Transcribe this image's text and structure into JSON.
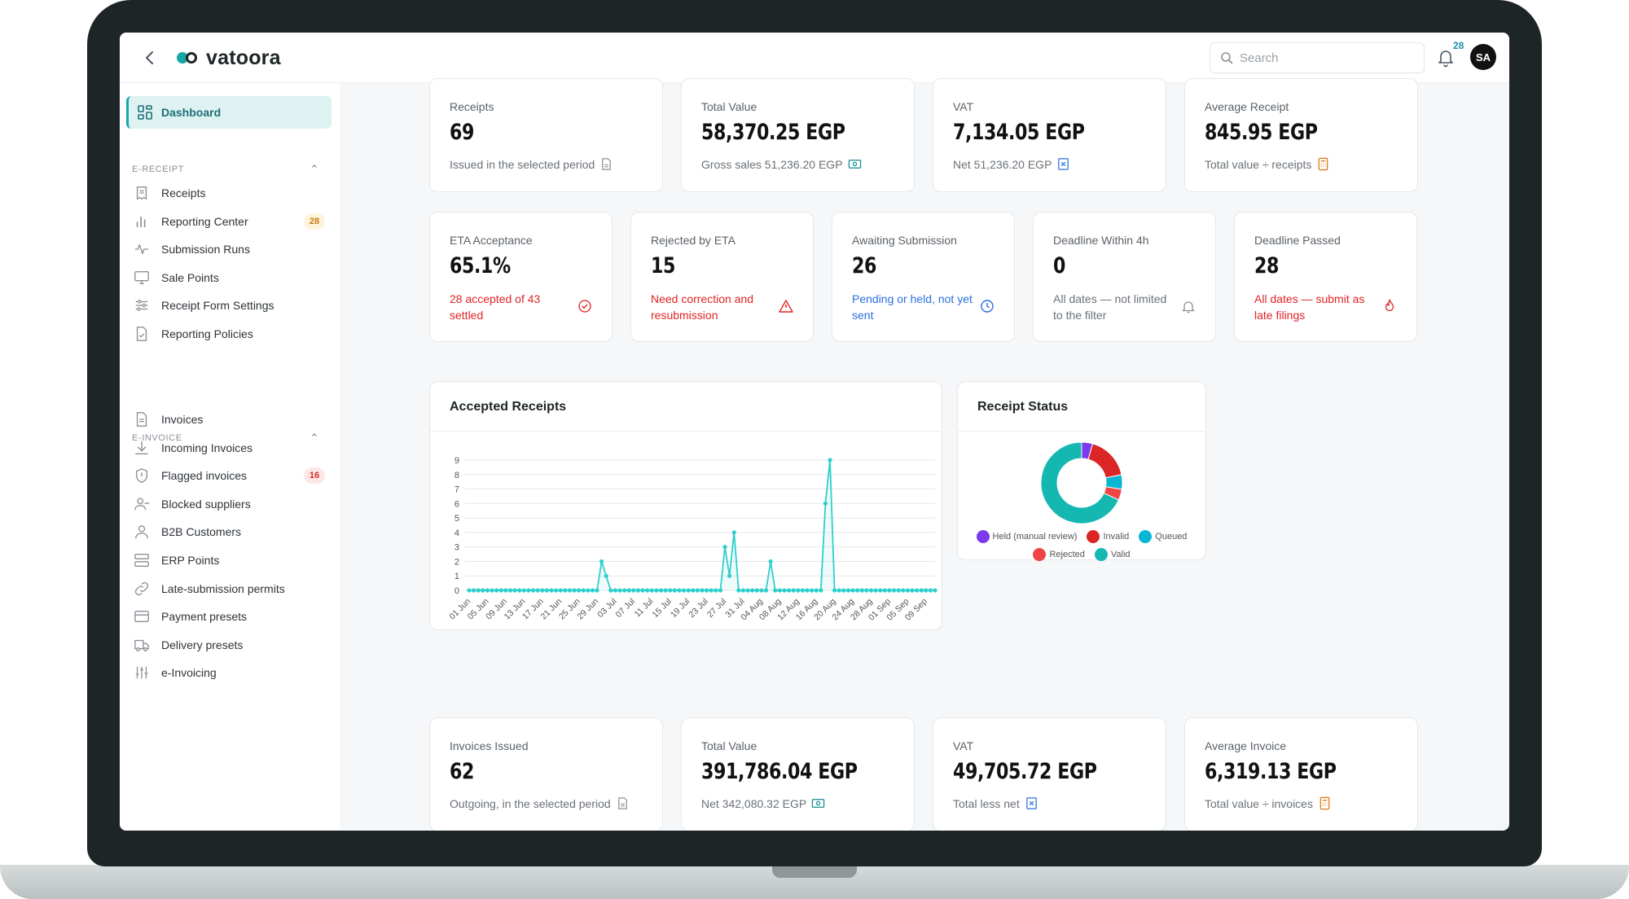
{
  "app": {
    "name": "vatoora"
  },
  "search": {
    "placeholder": "Search"
  },
  "notifications": {
    "count": "28"
  },
  "user": {
    "initials": "SA"
  },
  "sidebar": {
    "active": "Dashboard",
    "sections": [
      {
        "title": "E-RECEIPT",
        "items": [
          {
            "label": "Receipts",
            "icon": "receipt-icon"
          },
          {
            "label": "Reporting Center",
            "icon": "bar-chart-icon",
            "badge": "28"
          },
          {
            "label": "Submission Runs",
            "icon": "activity-icon"
          },
          {
            "label": "Sale Points",
            "icon": "monitor-icon"
          },
          {
            "label": "Receipt Form Settings",
            "icon": "sliders-icon"
          },
          {
            "label": "Reporting Policies",
            "icon": "file-check-icon"
          }
        ]
      },
      {
        "title": "E-INVOICE",
        "items": [
          {
            "label": "Invoices",
            "icon": "file-icon"
          },
          {
            "label": "Incoming Invoices",
            "icon": "download-icon"
          },
          {
            "label": "Flagged invoices",
            "icon": "shield-icon",
            "badge": "16"
          },
          {
            "label": "Blocked suppliers",
            "icon": "user-minus-icon"
          },
          {
            "label": "B2B Customers",
            "icon": "user-icon"
          },
          {
            "label": "ERP Points",
            "icon": "server-icon"
          },
          {
            "label": "Late-submission permits",
            "icon": "link-icon"
          },
          {
            "label": "Payment presets",
            "icon": "credit-card-icon"
          },
          {
            "label": "Delivery presets",
            "icon": "truck-icon"
          },
          {
            "label": "e-Invoicing",
            "icon": "sliders-vertical-icon"
          }
        ]
      }
    ]
  },
  "receipt_kpis": [
    {
      "label": "Receipts",
      "value": "69",
      "sub": "Issued in the selected period",
      "sub_color": "grey",
      "icon": "document-icon"
    },
    {
      "label": "Total Value",
      "value": "58,370.25 EGP",
      "sub": "Gross sales 51,236.20 EGP",
      "sub_color": "teal",
      "icon": "cash-icon"
    },
    {
      "label": "VAT",
      "value": "7,134.05 EGP",
      "sub": "Net 51,236.20 EGP",
      "sub_color": "blue",
      "icon": "receipt-x-icon"
    },
    {
      "label": "Average Receipt",
      "value": "845.95 EGP",
      "sub": "Total value ÷ receipts",
      "sub_color": "orange",
      "icon": "calculator-icon"
    }
  ],
  "status_kpis": [
    {
      "label": "ETA Acceptance",
      "value": "65.1%",
      "sub": "28 accepted of 43 settled",
      "sub_color": "red",
      "icon": "check-circle-icon"
    },
    {
      "label": "Rejected by ETA",
      "value": "15",
      "sub": "Need correction and resubmission",
      "sub_color": "red",
      "icon": "warning-icon"
    },
    {
      "label": "Awaiting Submission",
      "value": "26",
      "sub": "Pending or held, not yet sent",
      "sub_color": "blue",
      "icon": "clock-icon"
    },
    {
      "label": "Deadline Within 4h",
      "value": "0",
      "sub": "All dates — not limited to the filter",
      "sub_color": "grey",
      "icon": "alarm-icon"
    },
    {
      "label": "Deadline Passed",
      "value": "28",
      "sub": "All dates — submit as late filings",
      "sub_color": "red",
      "icon": "fire-icon"
    }
  ],
  "invoice_kpis": [
    {
      "label": "Invoices Issued",
      "value": "62",
      "sub": "Outgoing, in the selected period",
      "sub_color": "grey",
      "icon": "document-icon"
    },
    {
      "label": "Total Value",
      "value": "391,786.04 EGP",
      "sub": "Net 342,080.32 EGP",
      "sub_color": "teal",
      "icon": "cash-icon"
    },
    {
      "label": "VAT",
      "value": "49,705.72 EGP",
      "sub": "Total less net",
      "sub_color": "blue",
      "icon": "receipt-x-icon"
    },
    {
      "label": "Average Invoice",
      "value": "6,319.13 EGP",
      "sub": "Total value ÷ invoices",
      "sub_color": "orange",
      "icon": "calculator-icon"
    }
  ],
  "accepted_chart": {
    "title": "Accepted Receipts"
  },
  "status_chart": {
    "title": "Receipt Status"
  },
  "colors": {
    "accent": "#18a7a5",
    "line": "#2fcfcb",
    "held": "#7c3aed",
    "invalid": "#dc2626",
    "queued": "#06b6d4",
    "rejected": "#ef4444",
    "valid": "#14b8b1"
  },
  "chart_data": [
    {
      "type": "line",
      "title": "Accepted Receipts",
      "xlabel": "",
      "ylabel": "",
      "ylim": [
        0,
        9
      ],
      "yticks": [
        0,
        1,
        2,
        3,
        4,
        5,
        6,
        7,
        8,
        9
      ],
      "xtick_labels": [
        "01 Jun",
        "05 Jun",
        "09 Jun",
        "13 Jun",
        "17 Jun",
        "21 Jun",
        "25 Jun",
        "29 Jun",
        "03 Jul",
        "07 Jul",
        "11 Jul",
        "15 Jul",
        "19 Jul",
        "23 Jul",
        "27 Jul",
        "31 Jul",
        "04 Aug",
        "08 Aug",
        "12 Aug",
        "16 Aug",
        "20 Aug",
        "24 Aug",
        "28 Aug",
        "01 Sep",
        "05 Sep",
        "09 Sep"
      ],
      "x": [
        "2024-06-01",
        "2024-06-02",
        "2024-06-03",
        "2024-06-04",
        "2024-06-05",
        "2024-06-06",
        "2024-06-07",
        "2024-06-08",
        "2024-06-09",
        "2024-06-10",
        "2024-06-11",
        "2024-06-12",
        "2024-06-13",
        "2024-06-14",
        "2024-06-15",
        "2024-06-16",
        "2024-06-17",
        "2024-06-18",
        "2024-06-19",
        "2024-06-20",
        "2024-06-21",
        "2024-06-22",
        "2024-06-23",
        "2024-06-24",
        "2024-06-25",
        "2024-06-26",
        "2024-06-27",
        "2024-06-28",
        "2024-06-29",
        "2024-06-30",
        "2024-07-01",
        "2024-07-02",
        "2024-07-03",
        "2024-07-04",
        "2024-07-05",
        "2024-07-06",
        "2024-07-07",
        "2024-07-08",
        "2024-07-09",
        "2024-07-10",
        "2024-07-11",
        "2024-07-12",
        "2024-07-13",
        "2024-07-14",
        "2024-07-15",
        "2024-07-16",
        "2024-07-17",
        "2024-07-18",
        "2024-07-19",
        "2024-07-20",
        "2024-07-21",
        "2024-07-22",
        "2024-07-23",
        "2024-07-24",
        "2024-07-25",
        "2024-07-26",
        "2024-07-27",
        "2024-07-28",
        "2024-07-29",
        "2024-07-30",
        "2024-07-31",
        "2024-08-01",
        "2024-08-02",
        "2024-08-03",
        "2024-08-04",
        "2024-08-05",
        "2024-08-06",
        "2024-08-07",
        "2024-08-08",
        "2024-08-09",
        "2024-08-10",
        "2024-08-11",
        "2024-08-12",
        "2024-08-13",
        "2024-08-14",
        "2024-08-15",
        "2024-08-16",
        "2024-08-17",
        "2024-08-18",
        "2024-08-19",
        "2024-08-20",
        "2024-08-21",
        "2024-08-22",
        "2024-08-23",
        "2024-08-24",
        "2024-08-25",
        "2024-08-26",
        "2024-08-27",
        "2024-08-28",
        "2024-08-29",
        "2024-08-30",
        "2024-08-31",
        "2024-09-01",
        "2024-09-02",
        "2024-09-03",
        "2024-09-04",
        "2024-09-05",
        "2024-09-06",
        "2024-09-07",
        "2024-09-08",
        "2024-09-09",
        "2024-09-10",
        "2024-09-11"
      ],
      "series": [
        {
          "values": [
            0,
            0,
            0,
            0,
            0,
            0,
            0,
            0,
            0,
            0,
            0,
            0,
            0,
            0,
            0,
            0,
            0,
            0,
            0,
            0,
            0,
            0,
            0,
            0,
            0,
            0,
            0,
            0,
            0,
            2,
            1,
            0,
            0,
            0,
            0,
            0,
            0,
            0,
            0,
            0,
            0,
            0,
            0,
            0,
            0,
            0,
            0,
            0,
            0,
            0,
            0,
            0,
            0,
            0,
            0,
            0,
            3,
            1,
            4,
            0,
            0,
            0,
            0,
            0,
            0,
            0,
            2,
            0,
            0,
            0,
            0,
            0,
            0,
            0,
            0,
            0,
            0,
            0,
            6,
            9,
            0,
            0,
            0,
            0,
            0,
            0,
            0,
            0,
            0,
            0,
            0,
            0,
            0,
            0,
            0,
            0,
            0,
            0,
            0,
            0,
            0,
            0,
            0
          ]
        }
      ],
      "grid": true
    },
    {
      "type": "pie",
      "title": "Receipt Status",
      "categories": [
        "Held (manual review)",
        "Invalid",
        "Queued",
        "Rejected",
        "Valid"
      ],
      "values": [
        3,
        12,
        4,
        3,
        47
      ],
      "legend": "bottom"
    }
  ]
}
